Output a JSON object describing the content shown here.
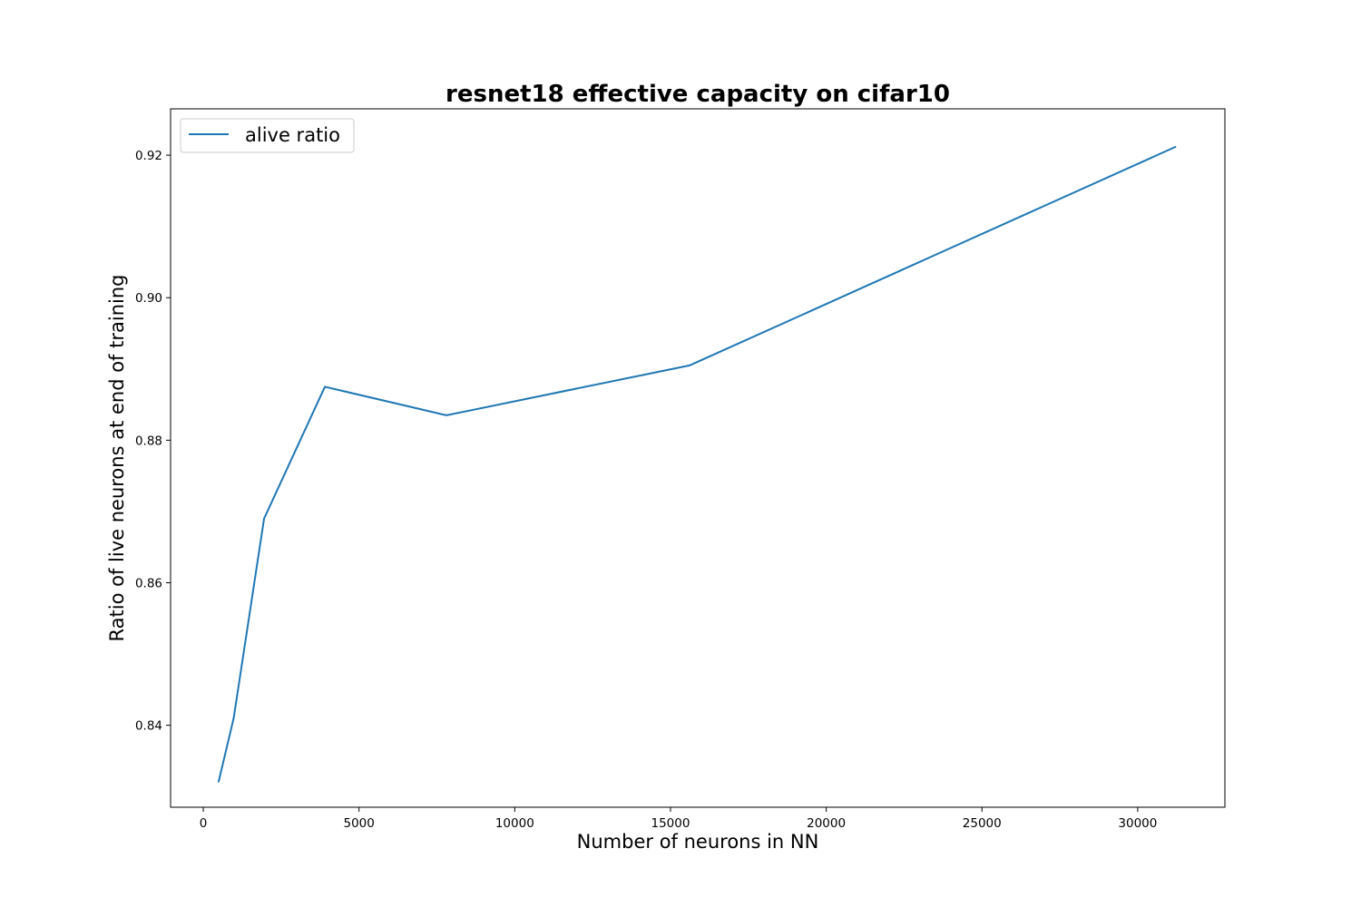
{
  "chart_data": {
    "type": "line",
    "title": "resnet18 effective capacity on cifar10",
    "xlabel": "Number of neurons in NN",
    "ylabel": "Ratio of live neurons at end of training",
    "xlim": [
      -1050,
      32800
    ],
    "ylim": [
      0.8285,
      0.9265
    ],
    "xticks": [
      0,
      5000,
      10000,
      15000,
      20000,
      25000,
      30000
    ],
    "xtick_labels": [
      "0",
      "5000",
      "10000",
      "15000",
      "20000",
      "25000",
      "30000"
    ],
    "yticks": [
      0.84,
      0.86,
      0.88,
      0.9,
      0.92
    ],
    "ytick_labels": [
      "0.84",
      "0.86",
      "0.88",
      "0.90",
      "0.92"
    ],
    "grid": false,
    "legend_position": "upper-left",
    "series": [
      {
        "name": "alive ratio",
        "color": "#1f77b4",
        "x": [
          488,
          976,
          1952,
          3904,
          7808,
          15616,
          31232
        ],
        "y": [
          0.832,
          0.841,
          0.869,
          0.8875,
          0.8835,
          0.8905,
          0.9212
        ]
      }
    ]
  }
}
